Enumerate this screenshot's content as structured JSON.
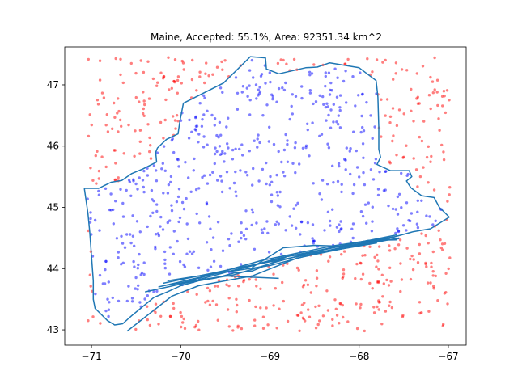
{
  "chart_data": {
    "type": "scatter",
    "title": "Maine, Accepted: 55.1%, Area: 92351.34 km^2",
    "xlabel": "",
    "ylabel": "",
    "xlim": [
      -71.3,
      -66.8
    ],
    "ylim": [
      42.75,
      47.62
    ],
    "xticks": [
      -71,
      -70,
      -69,
      -68,
      -67
    ],
    "xtick_labels": [
      "−71",
      "−70",
      "−69",
      "−68",
      "−67"
    ],
    "yticks": [
      43,
      44,
      45,
      46,
      47
    ],
    "ytick_labels": [
      "43",
      "44",
      "45",
      "46",
      "47"
    ],
    "grid": false,
    "accepted_percent": 55.1,
    "area_km2": 92351.34,
    "series": [
      {
        "role": "outline",
        "color": "#1f77b4",
        "points": [
          [
            -71.08,
            45.31
          ],
          [
            -70.92,
            45.31
          ],
          [
            -70.78,
            45.41
          ],
          [
            -70.66,
            45.44
          ],
          [
            -70.55,
            45.55
          ],
          [
            -70.42,
            45.63
          ],
          [
            -70.27,
            45.74
          ],
          [
            -70.28,
            45.9
          ],
          [
            -70.26,
            45.97
          ],
          [
            -70.16,
            46.11
          ],
          [
            -70.03,
            46.2
          ],
          [
            -70.01,
            46.4
          ],
          [
            -69.97,
            46.7
          ],
          [
            -69.52,
            47.03
          ],
          [
            -69.22,
            47.46
          ],
          [
            -69.05,
            47.44
          ],
          [
            -69.04,
            47.26
          ],
          [
            -68.9,
            47.18
          ],
          [
            -68.6,
            47.28
          ],
          [
            -68.47,
            47.29
          ],
          [
            -68.33,
            47.36
          ],
          [
            -68.0,
            47.28
          ],
          [
            -67.81,
            47.07
          ],
          [
            -67.79,
            46.8
          ],
          [
            -67.78,
            46.3
          ],
          [
            -67.78,
            45.95
          ],
          [
            -67.76,
            45.82
          ],
          [
            -67.8,
            45.7
          ],
          [
            -67.65,
            45.6
          ],
          [
            -67.44,
            45.6
          ],
          [
            -67.41,
            45.5
          ],
          [
            -67.47,
            45.43
          ],
          [
            -67.42,
            45.32
          ],
          [
            -67.3,
            45.19
          ],
          [
            -67.16,
            45.16
          ],
          [
            -67.1,
            45.0
          ],
          [
            -66.99,
            44.84
          ],
          [
            -67.2,
            44.65
          ],
          [
            -67.4,
            44.6
          ],
          [
            -67.6,
            44.52
          ],
          [
            -67.9,
            44.41
          ],
          [
            -68.2,
            44.37
          ],
          [
            -68.4,
            44.31
          ],
          [
            -68.6,
            44.25
          ],
          [
            -68.8,
            44.2
          ],
          [
            -69.0,
            44.08
          ],
          [
            -69.2,
            43.96
          ],
          [
            -69.4,
            43.93
          ],
          [
            -69.6,
            43.85
          ],
          [
            -69.8,
            43.8
          ],
          [
            -70.0,
            43.72
          ],
          [
            -70.15,
            43.62
          ],
          [
            -70.3,
            43.53
          ],
          [
            -70.45,
            43.35
          ],
          [
            -70.55,
            43.23
          ],
          [
            -70.65,
            43.1
          ],
          [
            -70.74,
            43.08
          ],
          [
            -70.82,
            43.15
          ],
          [
            -70.96,
            43.35
          ],
          [
            -70.98,
            43.5
          ],
          [
            -70.98,
            43.8
          ],
          [
            -71.0,
            44.2
          ],
          [
            -71.02,
            44.6
          ],
          [
            -71.04,
            44.9
          ],
          [
            -71.08,
            45.31
          ]
        ],
        "inner_tracks": [
          [
            [
              -70.6,
              42.98
            ],
            [
              -70.1,
              43.55
            ],
            [
              -69.8,
              43.72
            ],
            [
              -69.2,
              43.88
            ],
            [
              -68.7,
              44.17
            ],
            [
              -68.2,
              44.32
            ],
            [
              -67.7,
              44.46
            ],
            [
              -67.55,
              44.5
            ]
          ],
          [
            [
              -70.25,
              43.7
            ],
            [
              -69.6,
              43.92
            ],
            [
              -69.0,
              44.05
            ],
            [
              -68.4,
              44.28
            ],
            [
              -67.9,
              44.44
            ],
            [
              -67.55,
              44.49
            ]
          ],
          [
            [
              -70.2,
              43.72
            ],
            [
              -69.5,
              43.88
            ],
            [
              -68.9,
              43.84
            ]
          ],
          [
            [
              -70.2,
              43.76
            ],
            [
              -69.3,
              44.03
            ],
            [
              -68.6,
              44.22
            ],
            [
              -67.8,
              44.42
            ]
          ],
          [
            [
              -70.0,
              43.76
            ],
            [
              -69.1,
              44.13
            ],
            [
              -68.3,
              44.37
            ],
            [
              -67.6,
              44.52
            ]
          ],
          [
            [
              -69.8,
              43.82
            ],
            [
              -68.9,
              44.17
            ],
            [
              -68.1,
              44.4
            ],
            [
              -67.58,
              44.55
            ]
          ],
          [
            [
              -70.15,
              43.8
            ],
            [
              -69.4,
              43.97
            ],
            [
              -68.8,
              44.2
            ],
            [
              -68.3,
              44.3
            ],
            [
              -67.65,
              44.48
            ]
          ],
          [
            [
              -69.2,
              44.02
            ],
            [
              -68.85,
              44.34
            ],
            [
              -68.5,
              44.38
            ],
            [
              -68.1,
              44.36
            ],
            [
              -67.7,
              44.5
            ]
          ],
          [
            [
              -70.4,
              43.62
            ],
            [
              -69.9,
              43.78
            ],
            [
              -69.4,
              43.9
            ],
            [
              -68.95,
              44.1
            ],
            [
              -68.55,
              44.26
            ],
            [
              -67.9,
              44.46
            ],
            [
              -67.58,
              44.47
            ]
          ]
        ]
      },
      {
        "role": "accepted-samples",
        "color": "#0000ff",
        "count": 550,
        "seed": 7
      },
      {
        "role": "rejected-samples",
        "color": "#ff0000",
        "count": 450,
        "seed": 11
      }
    ]
  }
}
